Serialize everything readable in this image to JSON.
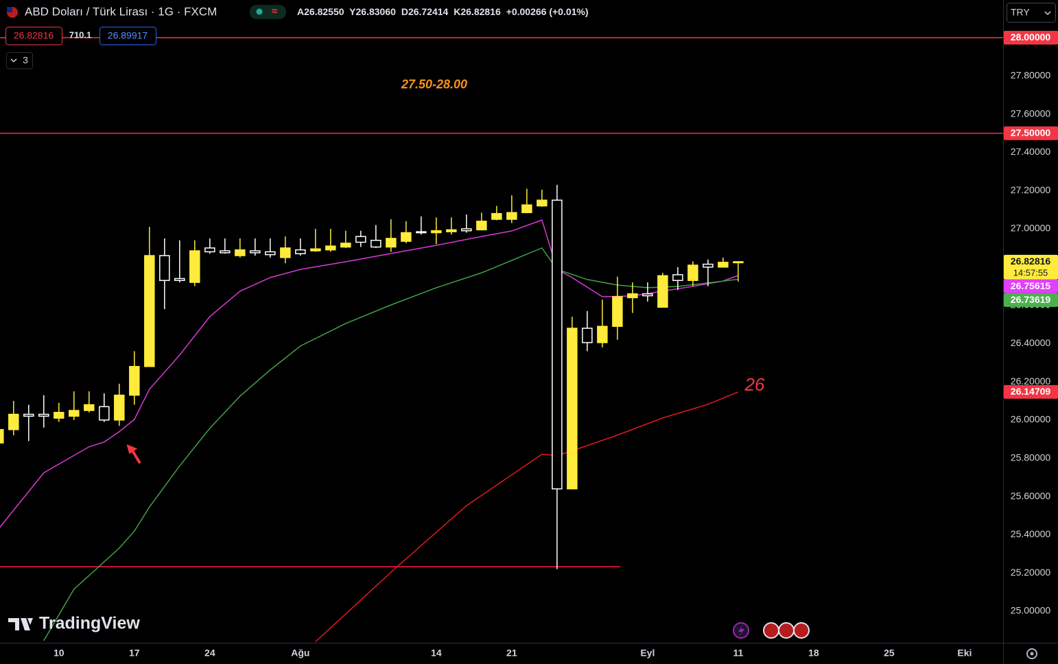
{
  "header": {
    "symbol": "ABD Doları / Türk Lirası · 1G · FXCM",
    "ohlc": [
      {
        "key": "A",
        "value": "26.82550"
      },
      {
        "key": "Y",
        "value": "26.83060"
      },
      {
        "key": "D",
        "value": "26.72414"
      },
      {
        "key": "K",
        "value": "26.82816"
      }
    ],
    "change": "+0.00266 (+0.01%)",
    "sell": "26.82816",
    "spread": "710.1",
    "buy": "26.89917",
    "indicators": "3",
    "currency": "TRY",
    "logo": "TradingView"
  },
  "chart_data": {
    "type": "candlestick",
    "xlim": [
      -3.9,
      62.55
    ],
    "xticks": [
      {
        "value": 0,
        "label": "10"
      },
      {
        "value": 5,
        "label": "17"
      },
      {
        "value": 10,
        "label": "24"
      },
      {
        "value": 16,
        "label": "Ağu"
      },
      {
        "value": 25,
        "label": "14"
      },
      {
        "value": 30,
        "label": "21"
      },
      {
        "value": 39,
        "label": "Eyl"
      },
      {
        "value": 45,
        "label": "11"
      },
      {
        "value": 50,
        "label": "18"
      },
      {
        "value": 55,
        "label": "25"
      },
      {
        "value": 60,
        "label": "Eki"
      }
    ],
    "ylim": [
      24.835,
      28.197
    ],
    "yticks": [
      {
        "value": 25,
        "label": "25.00000"
      },
      {
        "value": 25.2,
        "label": "25.20000"
      },
      {
        "value": 25.4,
        "label": "25.40000"
      },
      {
        "value": 25.6,
        "label": "25.60000"
      },
      {
        "value": 25.8,
        "label": "25.80000"
      },
      {
        "value": 26,
        "label": "26.00000"
      },
      {
        "value": 26.2,
        "label": "26.20000"
      },
      {
        "value": 26.4,
        "label": "26.40000"
      },
      {
        "value": 26.6,
        "label": "26.60000"
      },
      {
        "value": 26.8,
        "label": "26.80000"
      },
      {
        "value": 27,
        "label": "27.00000"
      },
      {
        "value": 27.2,
        "label": "27.20000"
      },
      {
        "value": 27.4,
        "label": "27.40000"
      },
      {
        "value": 27.6,
        "label": "27.60000"
      },
      {
        "value": 27.8,
        "label": "27.80000"
      },
      {
        "value": 28,
        "label": "28.00000"
      }
    ],
    "grid": false,
    "up_color": "#ffeb3b",
    "down_color": "#ffffff",
    "x": [
      -4,
      -3,
      -2,
      -1,
      0,
      1,
      2,
      3,
      4,
      5,
      6,
      7,
      8,
      9,
      10,
      11,
      12,
      13,
      14,
      15,
      16,
      17,
      18,
      19,
      20,
      21,
      22,
      23,
      24,
      25,
      26,
      27,
      28,
      29,
      30,
      31,
      32,
      33,
      34,
      35,
      36,
      37,
      38,
      39,
      40,
      41,
      42,
      43,
      44,
      45
    ],
    "open": [
      25.88,
      25.95,
      26.03,
      26.03,
      26.01,
      26.02,
      26.05,
      26.07,
      26.0,
      26.13,
      26.28,
      26.86,
      26.74,
      26.72,
      26.9,
      26.885,
      26.86,
      26.885,
      26.88,
      26.85,
      26.89,
      26.885,
      26.89,
      26.905,
      26.96,
      26.94,
      26.905,
      26.935,
      26.985,
      26.98,
      26.985,
      27.0,
      26.995,
      27.05,
      27.05,
      27.085,
      27.12,
      27.15,
      25.64,
      26.48,
      26.405,
      26.49,
      26.64,
      26.66,
      26.59,
      26.76,
      26.73,
      26.815,
      26.8,
      26.8255
    ],
    "high": [
      25.96,
      26.1,
      26.08,
      26.13,
      26.09,
      26.15,
      26.15,
      26.14,
      26.19,
      26.36,
      27.01,
      26.95,
      26.94,
      26.94,
      26.95,
      26.95,
      26.95,
      26.95,
      26.95,
      26.96,
      26.95,
      27.0,
      27.0,
      26.99,
      26.99,
      27.02,
      27.05,
      27.04,
      27.065,
      27.06,
      27.06,
      27.075,
      27.085,
      27.12,
      27.175,
      27.21,
      27.205,
      27.23,
      26.54,
      26.57,
      26.63,
      26.75,
      26.72,
      26.72,
      26.77,
      26.8,
      26.83,
      26.84,
      26.85,
      26.8306
    ],
    "low": [
      25.87,
      25.92,
      25.89,
      25.96,
      25.99,
      26.0,
      26.04,
      25.99,
      25.97,
      26.08,
      26.28,
      26.58,
      26.72,
      26.7,
      26.87,
      26.87,
      26.85,
      26.86,
      26.85,
      26.82,
      26.86,
      26.88,
      26.88,
      26.9,
      26.905,
      26.9,
      26.88,
      26.925,
      26.97,
      26.92,
      26.97,
      26.98,
      26.995,
      27.045,
      27.03,
      27.085,
      27.115,
      25.22,
      25.64,
      26.36,
      26.38,
      26.42,
      26.56,
      26.62,
      26.59,
      26.68,
      26.7,
      26.7,
      26.8,
      26.72414
    ],
    "close": [
      25.95,
      26.03,
      26.02,
      26.02,
      26.04,
      26.05,
      26.08,
      26.0,
      26.13,
      26.28,
      26.86,
      26.73,
      26.73,
      26.885,
      26.88,
      26.875,
      26.89,
      26.875,
      26.865,
      26.9,
      26.87,
      26.895,
      26.91,
      26.925,
      26.93,
      26.905,
      26.95,
      26.98,
      26.98,
      26.99,
      26.995,
      26.99,
      27.04,
      27.08,
      27.085,
      27.125,
      27.15,
      25.64,
      26.48,
      26.405,
      26.49,
      26.645,
      26.66,
      26.65,
      26.755,
      26.73,
      26.81,
      26.8,
      26.825,
      26.82816
    ],
    "lines": [
      {
        "color": "#d63bd8",
        "x": [
          -4,
          -1,
          2,
          3,
          4,
          5,
          6,
          8,
          10,
          12,
          14,
          16,
          19,
          22,
          25,
          28,
          30,
          32,
          33,
          34,
          36,
          38,
          40,
          42,
          44,
          45
        ],
        "values": [
          25.43,
          25.724,
          25.86,
          25.885,
          25.939,
          26.003,
          26.161,
          26.34,
          26.541,
          26.674,
          26.745,
          26.788,
          26.828,
          26.871,
          26.914,
          26.96,
          26.989,
          27.046,
          26.788,
          26.745,
          26.645,
          26.649,
          26.674,
          26.699,
          26.727,
          26.75615
        ]
      },
      {
        "color": "#43a047",
        "x": [
          -1,
          1,
          3,
          4,
          5,
          6,
          8,
          10,
          12,
          14,
          16,
          19,
          22,
          25,
          28,
          30,
          32,
          33,
          35,
          37,
          39,
          41,
          43,
          45
        ],
        "values": [
          24.846,
          25.115,
          25.258,
          25.33,
          25.419,
          25.545,
          25.76,
          25.957,
          26.125,
          26.262,
          26.387,
          26.505,
          26.602,
          26.692,
          26.77,
          26.835,
          26.9,
          26.788,
          26.735,
          26.706,
          26.692,
          26.699,
          26.717,
          26.73619
        ]
      },
      {
        "color": "#e3191f",
        "x": [
          17,
          22,
          27,
          32,
          33,
          34,
          37,
          40,
          43,
          45
        ],
        "values": [
          24.84,
          25.204,
          25.552,
          25.821,
          25.814,
          25.839,
          25.921,
          26.011,
          26.082,
          26.14709
        ]
      }
    ],
    "levels": [
      {
        "value": 28,
        "color": "#f23645"
      },
      {
        "value": 27.5,
        "color": "#f23645"
      },
      {
        "value": 25.233,
        "color": "#ff1744",
        "to": 37.2
      }
    ],
    "price_labels": [
      {
        "value": 28,
        "label": "28.00000",
        "color": "#f23645",
        "text_color": "#ffffff"
      },
      {
        "value": 27.5,
        "label": "27.50000",
        "color": "#f23645",
        "text_color": "#ffffff"
      },
      {
        "value": 26.82816,
        "label": "26.82816",
        "sub": "14:57:55",
        "color": "#ffeb3b",
        "text_color": "#131722"
      },
      {
        "value": 26.75615,
        "label": "26.75615",
        "color": "#e040fb",
        "text_color": "#ffffff"
      },
      {
        "value": 26.73619,
        "label": "26.73619",
        "color": "#4caf50",
        "text_color": "#ffffff"
      },
      {
        "value": 26.14709,
        "label": "26.14709",
        "color": "#f23645",
        "text_color": "#ffffff"
      }
    ],
    "annotations": [
      "27.50-28.00",
      "26"
    ]
  }
}
